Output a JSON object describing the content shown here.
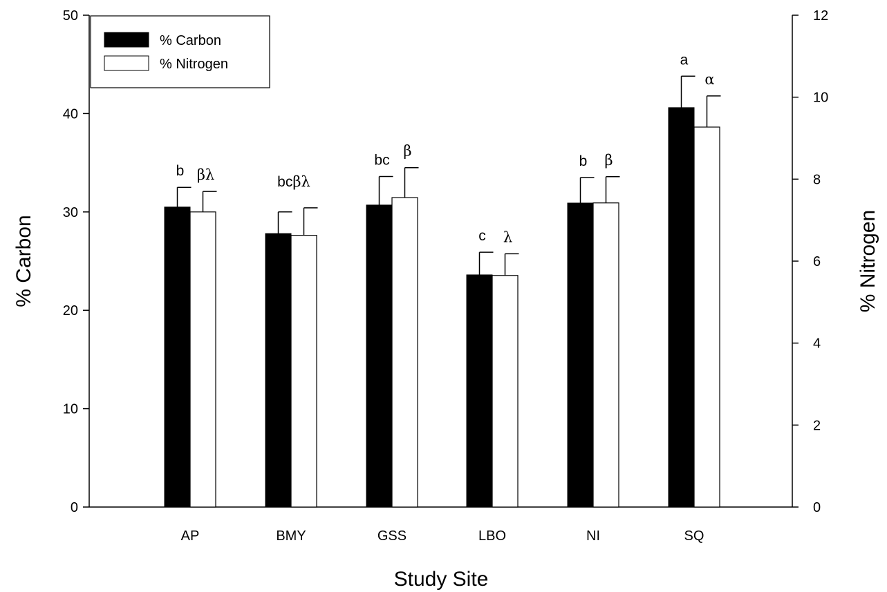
{
  "chart_data": {
    "type": "bar",
    "categories": [
      "AP",
      "BMY",
      "GSS",
      "LBO",
      "NI",
      "SQ"
    ],
    "xlabel": "Study Site",
    "ylabel": "% Carbon",
    "y2label": "% Nitrogen",
    "ylim": [
      0,
      50
    ],
    "y2lim": [
      0,
      12
    ],
    "yticks": [
      "0",
      "10",
      "20",
      "30",
      "40",
      "50"
    ],
    "y2ticks": [
      "0",
      "2",
      "4",
      "6",
      "8",
      "10",
      "12"
    ],
    "legend_position": "top-left",
    "grid": false,
    "series": [
      {
        "name": "% Carbon",
        "axis": "left",
        "color": "#000000",
        "values": [
          30.5,
          27.8,
          30.7,
          23.6,
          30.9,
          40.6
        ],
        "errors": [
          2.0,
          2.2,
          2.9,
          2.3,
          2.6,
          3.2
        ],
        "sig_labels": [
          "b",
          "bc",
          "bc",
          "c",
          "b",
          "a"
        ]
      },
      {
        "name": "% Nitrogen",
        "axis": "right",
        "color": "#ffffff",
        "values": [
          7.2,
          6.63,
          7.55,
          5.65,
          7.42,
          9.27
        ],
        "errors": [
          0.5,
          0.67,
          0.73,
          0.53,
          0.64,
          0.76
        ],
        "sig_labels": [
          "βλ",
          "βλ",
          "β",
          "λ",
          "β",
          "α"
        ]
      }
    ]
  }
}
